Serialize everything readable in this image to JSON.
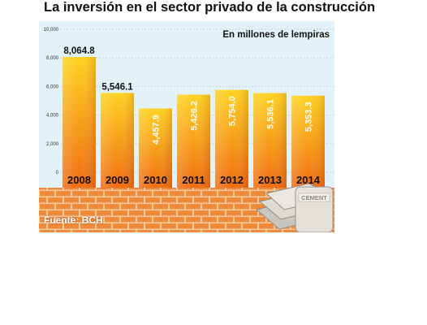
{
  "title": "La inversión en el sector privado de la construcción",
  "source": "Fuente: BCH",
  "colors": {
    "bar_top": "#ffd21f",
    "bar_bottom": "#f06a10",
    "panel_bg": "#e3f1f8",
    "brick": "#ee8a3a",
    "mortar": "#f7c9a0"
  },
  "chart_data": {
    "type": "bar",
    "title": "La inversión en el sector privado de la construcción",
    "subtitle": "En millones de lempiras",
    "xlabel": "",
    "ylabel": "",
    "categories": [
      "2008",
      "2009",
      "2010",
      "2011",
      "2012",
      "2013",
      "2014"
    ],
    "values": [
      8064.8,
      5546.1,
      4457.9,
      5426.2,
      5754.0,
      5536.1,
      5353.3
    ],
    "data_labels": [
      "8,064.8",
      "5,546.1",
      "4,457.9",
      "5,426.2",
      "5,754.0",
      "5,536.1",
      "5,353.3"
    ],
    "label_vertical": [
      false,
      false,
      true,
      true,
      true,
      true,
      true
    ],
    "ylim": [
      0,
      10000
    ],
    "yticks": [
      0,
      2000,
      4000,
      6000,
      8000,
      10000
    ],
    "ytick_labels": [
      "0",
      "2,000",
      "4,000",
      "6,000",
      "8,000",
      "10,000"
    ],
    "grid": true,
    "legend": "none"
  }
}
